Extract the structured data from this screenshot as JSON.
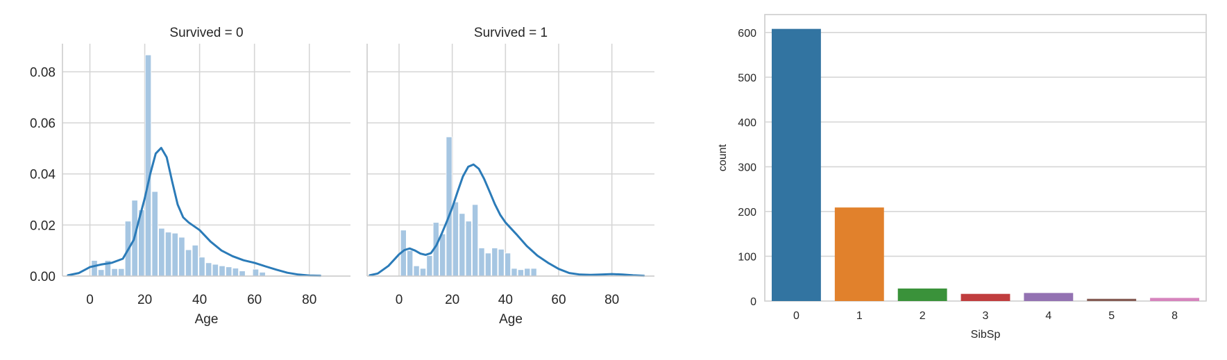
{
  "chart_data": [
    {
      "type": "histogram",
      "title": "Survived = 0",
      "xlabel": "Age",
      "ylabel": "",
      "xlim": [
        -10,
        95
      ],
      "ylim": [
        0,
        0.091
      ],
      "xticks": [
        "0",
        "20",
        "40",
        "60",
        "80"
      ],
      "yticks": [
        "0.00",
        "0.02",
        "0.04",
        "0.06",
        "0.08"
      ],
      "grid": true,
      "colors": {
        "hist": "#a6c6e2",
        "kde": "#2b7bb8"
      },
      "bins": {
        "start": 0.42,
        "width": 2.45,
        "density": [
          0.0061,
          0.0025,
          0.0061,
          0.0029,
          0.0029,
          0.0215,
          0.0297,
          0.0259,
          0.0866,
          0.0331,
          0.0187,
          0.0172,
          0.0168,
          0.0152,
          0.0103,
          0.0121,
          0.0074,
          0.0052,
          0.0046,
          0.004,
          0.0036,
          0.0031,
          0.002,
          0.0,
          0.0027,
          0.0015
        ]
      },
      "kde": {
        "x": [
          -8,
          -4,
          0,
          4,
          8,
          12,
          16,
          18,
          20,
          22,
          24,
          26,
          28,
          30,
          32,
          34,
          36,
          40,
          44,
          48,
          52,
          56,
          60,
          64,
          68,
          72,
          76,
          80,
          84
        ],
        "y": [
          0.0003,
          0.0012,
          0.0035,
          0.0045,
          0.0052,
          0.0068,
          0.0142,
          0.0225,
          0.0305,
          0.04,
          0.048,
          0.0502,
          0.0465,
          0.037,
          0.028,
          0.023,
          0.021,
          0.018,
          0.0135,
          0.01,
          0.0078,
          0.0062,
          0.0052,
          0.0038,
          0.0025,
          0.0013,
          0.0006,
          0.0002,
          0.0001
        ]
      }
    },
    {
      "type": "histogram",
      "title": "Survived = 1",
      "xlabel": "Age",
      "ylabel": "",
      "xlim": [
        -12,
        96
      ],
      "ylim": [
        0,
        0.091
      ],
      "xticks": [
        "0",
        "20",
        "40",
        "60",
        "80"
      ],
      "yticks": [],
      "grid": true,
      "colors": {
        "hist": "#a6c6e2",
        "kde": "#2b7bb8"
      },
      "bins": {
        "start": 0.42,
        "width": 2.45,
        "density": [
          0.018,
          0.01,
          0.004,
          0.003,
          0.008,
          0.021,
          0.0165,
          0.0545,
          0.029,
          0.0245,
          0.0215,
          0.028,
          0.011,
          0.009,
          0.011,
          0.0105,
          0.009,
          0.003,
          0.0025,
          0.003,
          0.003,
          0.0,
          0.0,
          0.0,
          0.0,
          0.0
        ]
      },
      "kde": {
        "x": [
          -11,
          -8,
          -4,
          0,
          2,
          4,
          6,
          8,
          10,
          12,
          14,
          16,
          18,
          20,
          22,
          24,
          26,
          28,
          30,
          32,
          34,
          36,
          38,
          40,
          44,
          48,
          52,
          56,
          60,
          64,
          68,
          72,
          76,
          80,
          84,
          88,
          92
        ],
        "y": [
          0.0003,
          0.001,
          0.004,
          0.0085,
          0.0102,
          0.0108,
          0.01,
          0.0088,
          0.0083,
          0.009,
          0.012,
          0.0165,
          0.0215,
          0.0268,
          0.033,
          0.039,
          0.0428,
          0.0437,
          0.042,
          0.038,
          0.0332,
          0.0282,
          0.024,
          0.021,
          0.0165,
          0.0118,
          0.008,
          0.0052,
          0.0028,
          0.0012,
          0.0006,
          0.0005,
          0.0006,
          0.0008,
          0.0006,
          0.0003,
          0.0001
        ]
      }
    },
    {
      "type": "bar",
      "title": "",
      "xlabel": "SibSp",
      "ylabel": "count",
      "categories": [
        "0",
        "1",
        "2",
        "3",
        "4",
        "5",
        "8"
      ],
      "values": [
        608,
        209,
        28,
        16,
        18,
        5,
        7
      ],
      "colors": [
        "#3274a1",
        "#e1812c",
        "#3a923a",
        "#c03d3e",
        "#9372b2",
        "#845b53",
        "#d684bd"
      ],
      "ylim": [
        0,
        640
      ],
      "yticks": [
        "0",
        "100",
        "200",
        "300",
        "400",
        "500",
        "600"
      ],
      "grid": true
    }
  ]
}
